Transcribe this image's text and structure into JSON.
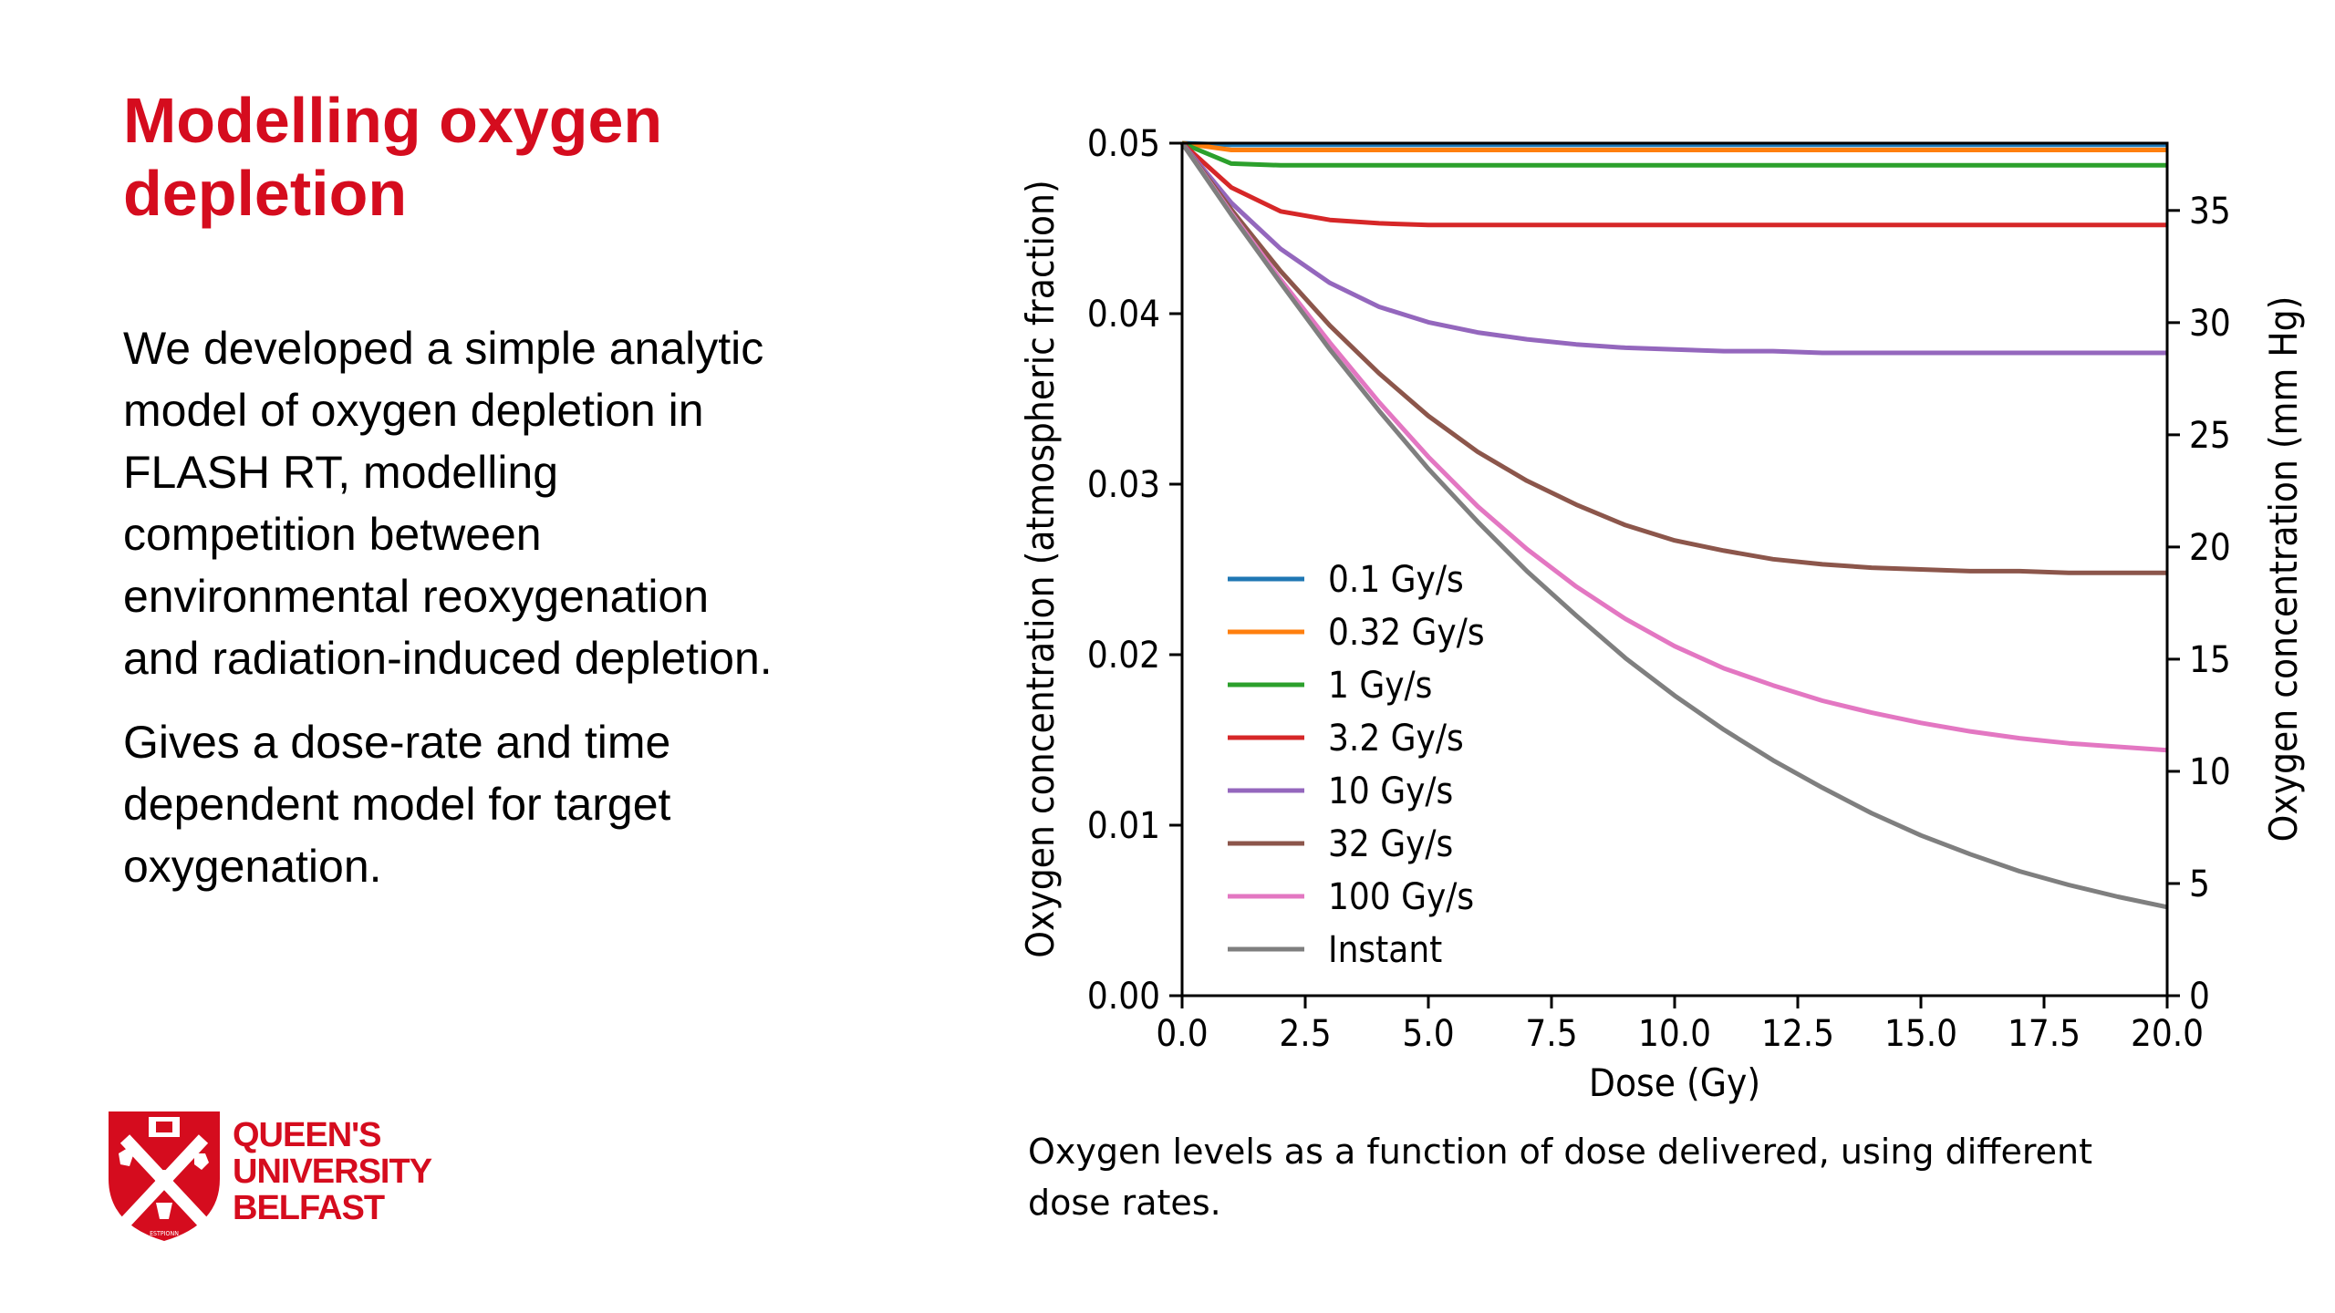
{
  "slide": {
    "title_line1": "Modelling oxygen",
    "title_line2": "depletion",
    "para1_lines": [
      "We developed a simple analytic",
      "model of oxygen depletion in",
      "FLASH RT, modelling",
      "competition between",
      "environmental reoxygenation",
      "and radiation-induced depletion."
    ],
    "para2_lines": [
      "Gives a dose-rate and time",
      "dependent model for target",
      "oxygenation."
    ],
    "caption_line1": "Oxygen levels as a function of dose delivered, using different",
    "caption_line2": "dose rates.",
    "logo_lines": [
      "QUEEN'S",
      "UNIVERSITY",
      "BELFAST"
    ],
    "logo_motto": "ESTPIONN",
    "brand_color": "#d50c1e"
  },
  "chart_data": {
    "type": "line",
    "title": "",
    "xlabel": "Dose (Gy)",
    "ylabel": "Oxygen concentration (atmospheric fraction)",
    "y2label": "Oxygen concentration (mm Hg)",
    "xlim": [
      0,
      20
    ],
    "ylim": [
      0,
      0.05
    ],
    "y2lim": [
      0,
      38
    ],
    "x_ticks": [
      "0.0",
      "2.5",
      "5.0",
      "7.5",
      "10.0",
      "12.5",
      "15.0",
      "17.5",
      "20.0"
    ],
    "y_ticks": [
      "0.00",
      "0.01",
      "0.02",
      "0.03",
      "0.04",
      "0.05"
    ],
    "y2_ticks": [
      "0",
      "5",
      "10",
      "15",
      "20",
      "25",
      "30",
      "35"
    ],
    "legend_position": "lower-left",
    "grid": false,
    "x": [
      0,
      1,
      2,
      3,
      4,
      5,
      6,
      7,
      8,
      9,
      10,
      11,
      12,
      13,
      14,
      15,
      16,
      17,
      18,
      19,
      20
    ],
    "series": [
      {
        "name": "0.1 Gy/s",
        "color": "#1f77b4",
        "values": [
          0.05,
          0.0499,
          0.0499,
          0.0499,
          0.0499,
          0.0499,
          0.0499,
          0.0499,
          0.0499,
          0.0499,
          0.0499,
          0.0499,
          0.0499,
          0.0499,
          0.0499,
          0.0499,
          0.0499,
          0.0499,
          0.0499,
          0.0499,
          0.0499
        ]
      },
      {
        "name": "0.32 Gy/s",
        "color": "#ff7f0e",
        "values": [
          0.05,
          0.0496,
          0.0496,
          0.0496,
          0.0496,
          0.0496,
          0.0496,
          0.0496,
          0.0496,
          0.0496,
          0.0496,
          0.0496,
          0.0496,
          0.0496,
          0.0496,
          0.0496,
          0.0496,
          0.0496,
          0.0496,
          0.0496,
          0.0496
        ]
      },
      {
        "name": "1 Gy/s",
        "color": "#2ca02c",
        "values": [
          0.05,
          0.0488,
          0.0487,
          0.0487,
          0.0487,
          0.0487,
          0.0487,
          0.0487,
          0.0487,
          0.0487,
          0.0487,
          0.0487,
          0.0487,
          0.0487,
          0.0487,
          0.0487,
          0.0487,
          0.0487,
          0.0487,
          0.0487,
          0.0487
        ]
      },
      {
        "name": "3.2 Gy/s",
        "color": "#d62728",
        "values": [
          0.05,
          0.0474,
          0.046,
          0.0455,
          0.0453,
          0.0452,
          0.0452,
          0.0452,
          0.0452,
          0.0452,
          0.0452,
          0.0452,
          0.0452,
          0.0452,
          0.0452,
          0.0452,
          0.0452,
          0.0452,
          0.0452,
          0.0452,
          0.0452
        ]
      },
      {
        "name": "10 Gy/s",
        "color": "#9467bd",
        "values": [
          0.05,
          0.0465,
          0.0438,
          0.0418,
          0.0404,
          0.0395,
          0.0389,
          0.0385,
          0.0382,
          0.038,
          0.0379,
          0.0378,
          0.0378,
          0.0377,
          0.0377,
          0.0377,
          0.0377,
          0.0377,
          0.0377,
          0.0377,
          0.0377
        ]
      },
      {
        "name": "32 Gy/s",
        "color": "#8c564b",
        "values": [
          0.05,
          0.0461,
          0.0425,
          0.0393,
          0.0365,
          0.034,
          0.0319,
          0.0302,
          0.0288,
          0.0276,
          0.0267,
          0.0261,
          0.0256,
          0.0253,
          0.0251,
          0.025,
          0.0249,
          0.0249,
          0.0248,
          0.0248,
          0.0248
        ]
      },
      {
        "name": "100 Gy/s",
        "color": "#e377c2",
        "values": [
          0.05,
          0.0459,
          0.042,
          0.0383,
          0.0348,
          0.0316,
          0.0287,
          0.0262,
          0.024,
          0.0221,
          0.0205,
          0.0192,
          0.0182,
          0.0173,
          0.0166,
          0.016,
          0.0155,
          0.0151,
          0.0148,
          0.0146,
          0.0144
        ]
      },
      {
        "name": "Instant",
        "color": "#7f7f7f",
        "values": [
          0.05,
          0.0458,
          0.0418,
          0.0379,
          0.0343,
          0.0309,
          0.0278,
          0.0249,
          0.0223,
          0.0198,
          0.0176,
          0.0156,
          0.0138,
          0.0122,
          0.0107,
          0.0094,
          0.0083,
          0.0073,
          0.0065,
          0.0058,
          0.0052
        ]
      }
    ]
  }
}
